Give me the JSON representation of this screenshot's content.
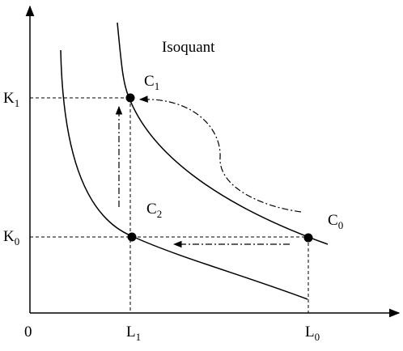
{
  "title": "Isoquant",
  "origin": "0",
  "points": [
    {
      "base": "C",
      "sub": "1"
    },
    {
      "base": "C",
      "sub": "2"
    },
    {
      "base": "C",
      "sub": "0"
    }
  ],
  "y_labels": [
    {
      "base": "K",
      "sub": "1"
    },
    {
      "base": "K",
      "sub": "0"
    }
  ],
  "x_labels": [
    {
      "base": "L",
      "sub": "1"
    },
    {
      "base": "L",
      "sub": "0"
    }
  ]
}
